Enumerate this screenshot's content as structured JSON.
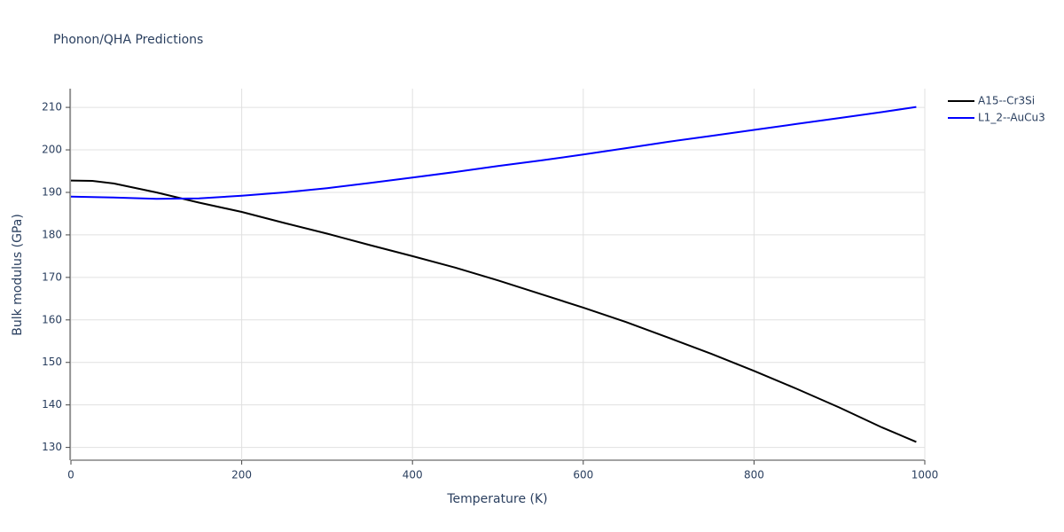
{
  "chart_data": {
    "type": "line",
    "title": "Phonon/QHA Predictions",
    "x_label": "Temperature (K)",
    "y_label": "Bulk modulus (GPa)",
    "xlim": [
      0,
      1000
    ],
    "ylim": [
      127,
      214.4
    ],
    "xticks": [
      0,
      200,
      400,
      600,
      800,
      1000
    ],
    "yticks": [
      130,
      140,
      150,
      160,
      170,
      180,
      190,
      200,
      210
    ],
    "grid": true,
    "legend": "outside-right",
    "x": [
      0,
      25,
      50,
      100,
      150,
      200,
      250,
      300,
      350,
      400,
      450,
      500,
      550,
      600,
      650,
      700,
      750,
      800,
      850,
      900,
      950,
      990
    ],
    "series": [
      {
        "name": "A15--Cr3Si",
        "color": "#000000",
        "values": [
          192.8,
          192.7,
          192.1,
          190.0,
          187.6,
          185.4,
          182.8,
          180.3,
          177.6,
          175.0,
          172.3,
          169.3,
          166.1,
          162.9,
          159.5,
          155.8,
          152.0,
          148.0,
          143.8,
          139.4,
          134.7,
          131.3
        ]
      },
      {
        "name": "L1_2--AuCu3",
        "color": "#0000ff",
        "values": [
          189.0,
          188.9,
          188.8,
          188.5,
          188.6,
          189.2,
          190.0,
          191.0,
          192.2,
          193.5,
          194.8,
          196.2,
          197.5,
          198.9,
          200.4,
          201.9,
          203.3,
          204.7,
          206.1,
          207.5,
          208.9,
          210.1
        ]
      }
    ]
  }
}
